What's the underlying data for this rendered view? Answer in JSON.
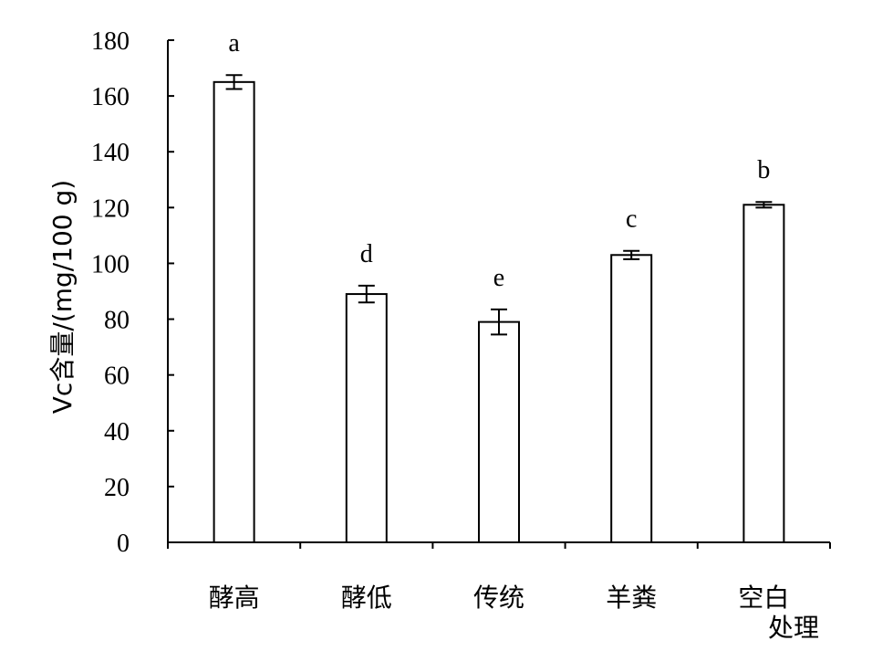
{
  "chart_data": {
    "type": "bar",
    "categories": [
      "酵高",
      "酵低",
      "传统",
      "羊粪",
      "空白"
    ],
    "values": [
      165,
      89,
      79,
      103,
      121
    ],
    "errors": [
      2.5,
      3.0,
      4.5,
      1.5,
      1.0
    ],
    "significance_letters": [
      "a",
      "d",
      "e",
      "c",
      "b"
    ],
    "title": "",
    "xlabel": "处理",
    "ylabel": "Vc含量/(mg/100 g)",
    "ylim": [
      0,
      180
    ],
    "yticks": [
      0,
      20,
      40,
      60,
      80,
      100,
      120,
      140,
      160,
      180
    ],
    "grid": false,
    "legend": "none",
    "colors": {
      "bar_fill": "#ffffff",
      "bar_stroke": "#000000",
      "axis": "#000000"
    }
  }
}
